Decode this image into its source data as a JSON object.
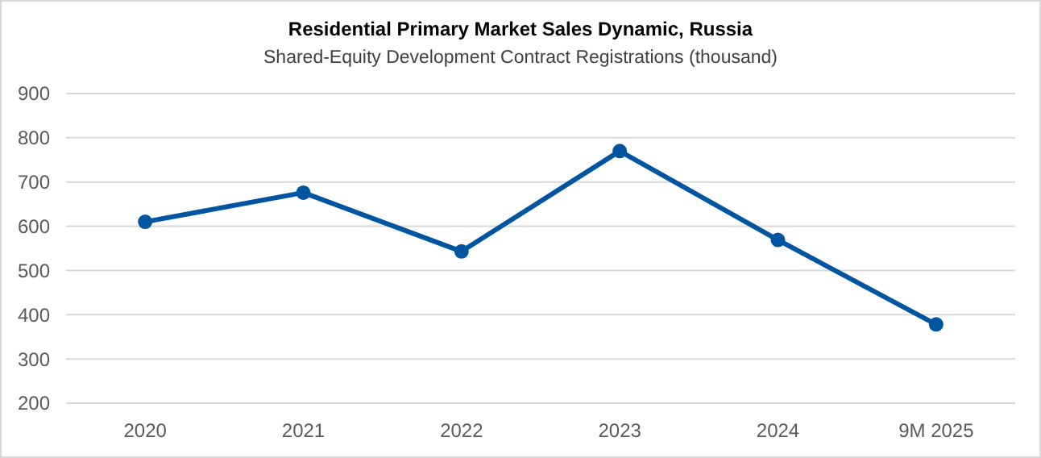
{
  "chart_data": {
    "type": "line",
    "title": "Residential Primary Market Sales Dynamic, Russia",
    "subtitle": "Shared-Equity Development Contract Registrations (thousand)",
    "categories": [
      "2020",
      "2021",
      "2022",
      "2023",
      "2024",
      "9M 2025"
    ],
    "series": [
      {
        "color": "#0055a0",
        "values": [
          610,
          676,
          543,
          770,
          569,
          378
        ]
      }
    ],
    "ylim": [
      200,
      900
    ],
    "yticks": [
      200,
      300,
      400,
      500,
      600,
      700,
      800,
      900
    ],
    "grid": "y",
    "marker": "circle",
    "line_style": "solid"
  }
}
